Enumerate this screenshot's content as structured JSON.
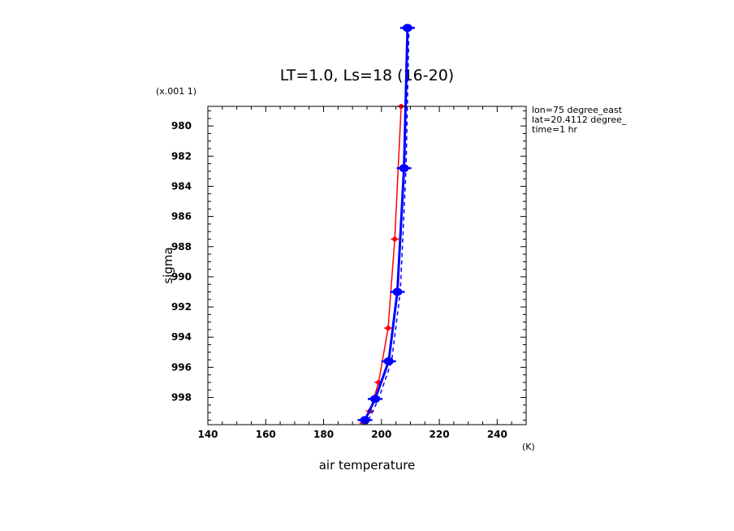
{
  "chart_data": {
    "type": "line",
    "title": "LT=1.0, Ls=18 (16-20)",
    "xlabel": "air temperature",
    "xunits": "(K)",
    "ylabel": "sigma",
    "yscale_label": "(x.001 1)",
    "xlim": [
      140,
      250
    ],
    "ylim": [
      999.8,
      978.7
    ],
    "xticks": [
      140,
      160,
      180,
      200,
      220,
      240
    ],
    "yticks": [
      980,
      982,
      984,
      986,
      988,
      990,
      992,
      994,
      996,
      998
    ],
    "info": [
      "lon=75 degree_east",
      "lat=20.4112 degree_",
      "time=1 hr"
    ],
    "colors": {
      "red": "#ff0000",
      "blue": "#0000ff"
    },
    "series": [
      {
        "color": "#ff0000",
        "style": "solid",
        "points": [
          {
            "x": 193.8,
            "y": 999.7
          },
          {
            "x": 196.0,
            "y": 998.9
          },
          {
            "x": 199.0,
            "y": 997.0
          },
          {
            "x": 202.3,
            "y": 993.4
          },
          {
            "x": 204.6,
            "y": 987.5
          },
          {
            "x": 206.8,
            "y": 978.7
          }
        ]
      },
      {
        "color": "#0000ff",
        "style": "solid-thick",
        "points": [
          {
            "x": 194.3,
            "y": 999.5
          },
          {
            "x": 197.8,
            "y": 998.1
          },
          {
            "x": 202.5,
            "y": 995.6
          },
          {
            "x": 205.5,
            "y": 991.0
          },
          {
            "x": 207.8,
            "y": 982.8
          },
          {
            "x": 209.0,
            "y": 973.5
          }
        ]
      },
      {
        "color": "#0000ff",
        "style": "dashed",
        "points": [
          {
            "x": 195.5,
            "y": 999.5
          },
          {
            "x": 199.0,
            "y": 998.1
          },
          {
            "x": 203.5,
            "y": 995.6
          },
          {
            "x": 206.5,
            "y": 991.0
          },
          {
            "x": 208.5,
            "y": 982.8
          },
          {
            "x": 209.5,
            "y": 973.5
          }
        ]
      }
    ]
  }
}
